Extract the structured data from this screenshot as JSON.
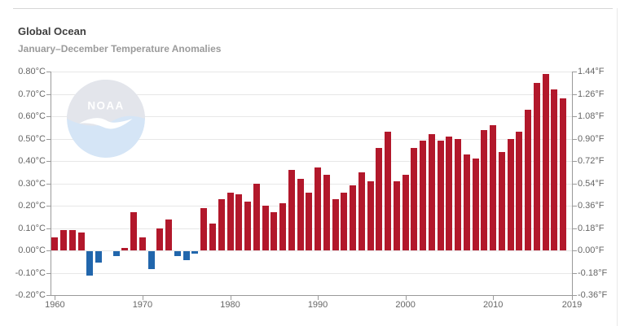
{
  "header": {
    "title": "Global Ocean",
    "subtitle": "January–December Temperature Anomalies"
  },
  "watermark": {
    "label": "NOAA"
  },
  "colors": {
    "positive_bar": "#b2182b",
    "negative_bar": "#2166ac",
    "gridline": "#e7e7e7",
    "axis": "#9a9a9a",
    "tick_text": "#666666",
    "title_text": "#3e3e3e",
    "subtitle_text": "#9b9b9b"
  },
  "chart_data": {
    "type": "bar",
    "title": "Global Ocean",
    "subtitle": "January–December Temperature Anomalies",
    "ylabel_left_unit": "°C",
    "ylabel_right_unit": "°F",
    "ylim_c": [
      -0.2,
      0.8
    ],
    "ylim_f": [
      -0.36,
      1.44
    ],
    "grid": true,
    "x_domain": [
      1959.5,
      2019
    ],
    "x_ticks": [
      1960,
      1970,
      1980,
      1990,
      2000,
      2010,
      2019
    ],
    "x_tick_labels": [
      "1960",
      "1970",
      "1980",
      "1990",
      "2000",
      "2010",
      "2019"
    ],
    "y_tick_values": [
      0.8,
      0.7,
      0.6,
      0.5,
      0.4,
      0.3,
      0.2,
      0.1,
      0.0,
      -0.1,
      -0.2
    ],
    "y_tick_labels_c": [
      "0.80°C",
      "0.70°C",
      "0.60°C",
      "0.50°C",
      "0.40°C",
      "0.30°C",
      "0.20°C",
      "0.10°C",
      "0.00°C",
      "-0.10°C",
      "-0.20°C"
    ],
    "y_tick_labels_f": [
      "1.44°F",
      "1.26°F",
      "1.08°F",
      "0.90°F",
      "0.72°F",
      "0.54°F",
      "0.36°F",
      "0.18°F",
      "0.00°F",
      "-0.18°F",
      "-0.36°F"
    ],
    "years": [
      1960,
      1961,
      1962,
      1963,
      1964,
      1965,
      1966,
      1967,
      1968,
      1969,
      1970,
      1971,
      1972,
      1973,
      1974,
      1975,
      1976,
      1977,
      1978,
      1979,
      1980,
      1981,
      1982,
      1983,
      1984,
      1985,
      1986,
      1987,
      1988,
      1989,
      1990,
      1991,
      1992,
      1993,
      1994,
      1995,
      1996,
      1997,
      1998,
      1999,
      2000,
      2001,
      2002,
      2003,
      2004,
      2005,
      2006,
      2007,
      2008,
      2009,
      2010,
      2011,
      2012,
      2013,
      2014,
      2015,
      2016,
      2017,
      2018
    ],
    "values": [
      0.06,
      0.09,
      0.09,
      0.08,
      -0.11,
      -0.05,
      0.0,
      -0.02,
      0.01,
      0.17,
      0.06,
      -0.08,
      0.1,
      0.14,
      -0.02,
      -0.04,
      -0.01,
      0.19,
      0.12,
      0.23,
      0.26,
      0.25,
      0.22,
      0.3,
      0.2,
      0.17,
      0.21,
      0.36,
      0.32,
      0.26,
      0.37,
      0.34,
      0.23,
      0.26,
      0.29,
      0.35,
      0.31,
      0.46,
      0.53,
      0.31,
      0.34,
      0.46,
      0.49,
      0.52,
      0.49,
      0.51,
      0.5,
      0.43,
      0.41,
      0.54,
      0.56,
      0.44,
      0.5,
      0.53,
      0.63,
      0.75,
      0.79,
      0.72,
      0.68
    ]
  }
}
